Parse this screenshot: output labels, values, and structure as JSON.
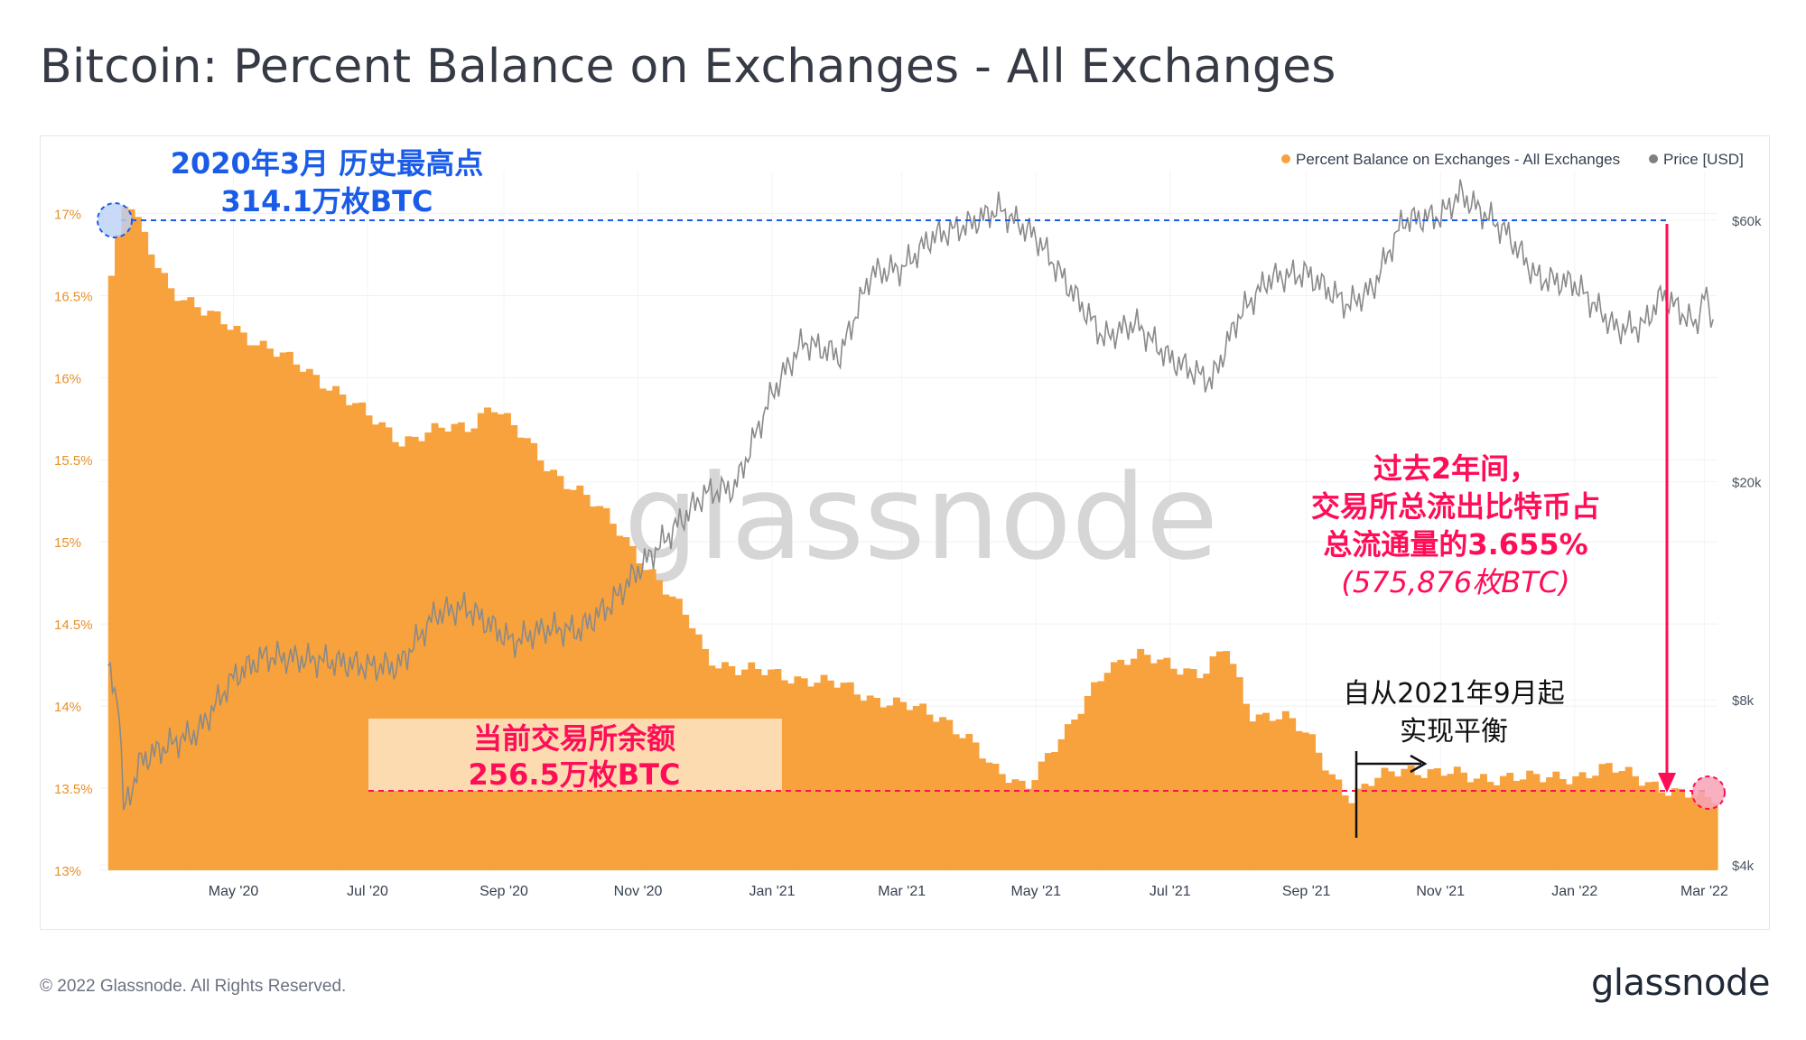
{
  "title": "Bitcoin: Percent Balance on Exchanges - All Exchanges",
  "footer": {
    "copyright": "© 2022 Glassnode. All Rights Reserved.",
    "logo": "glassnode"
  },
  "watermark": "glassnode",
  "colors": {
    "bar": "#f7a23c",
    "bar_edge": "#e8902a",
    "price": "#7f7f7f",
    "blue": "#1a5ce8",
    "magenta": "#ff0d57",
    "text": "#353a45"
  },
  "annotations": {
    "ath_line1": "2020年3月 历史最高点",
    "ath_line2": "314.1万枚BTC",
    "current_line1": "当前交易所余额",
    "current_line2": "256.5万枚BTC",
    "outflow_line1": "过去2年间，",
    "outflow_line2": "交易所总流出比特币占",
    "outflow_line3": "总流通量的3.655%",
    "outflow_line4": "(575,876枚BTC)",
    "balance_line1": "自从2021年9月起",
    "balance_line2": "实现平衡"
  },
  "chart_data": {
    "type": "bar",
    "title": "Bitcoin: Percent Balance on Exchanges - All Exchanges",
    "legend_placement": "top-right",
    "x_ticks": [
      "May '20",
      "Jul '20",
      "Sep '20",
      "Nov '20",
      "Jan '21",
      "Mar '21",
      "May '21",
      "Jul '21",
      "Sep '21",
      "Nov '21",
      "Jan '22",
      "Mar '22"
    ],
    "left_axis": {
      "ticks": [
        "13%",
        "13.5%",
        "14%",
        "14.5%",
        "15%",
        "15.5%",
        "16%",
        "16.5%",
        "17%"
      ],
      "ylim": [
        13.0,
        17.2
      ]
    },
    "right_axis": {
      "ticks": [
        "$4k",
        "$8k",
        "$20k",
        "$60k"
      ],
      "scale": "log"
    },
    "series": [
      {
        "name": "Percent Balance on Exchanges - All Exchanges",
        "type": "bar",
        "axis": "left",
        "points": [
          [
            "2020-03-05",
            16.62
          ],
          [
            "2020-03-12",
            17.1
          ],
          [
            "2020-03-20",
            16.85
          ],
          [
            "2020-04-01",
            16.55
          ],
          [
            "2020-04-15",
            16.4
          ],
          [
            "2020-05-01",
            16.3
          ],
          [
            "2020-05-15",
            16.18
          ],
          [
            "2020-06-01",
            16.05
          ],
          [
            "2020-06-15",
            15.93
          ],
          [
            "2020-07-01",
            15.75
          ],
          [
            "2020-07-15",
            15.62
          ],
          [
            "2020-08-01",
            15.68
          ],
          [
            "2020-08-15",
            15.7
          ],
          [
            "2020-08-25",
            15.85
          ],
          [
            "2020-09-05",
            15.68
          ],
          [
            "2020-09-20",
            15.45
          ],
          [
            "2020-10-05",
            15.3
          ],
          [
            "2020-10-20",
            15.1
          ],
          [
            "2020-11-01",
            14.9
          ],
          [
            "2020-11-15",
            14.65
          ],
          [
            "2020-11-25",
            14.48
          ],
          [
            "2020-12-01",
            14.3
          ],
          [
            "2020-12-15",
            14.22
          ],
          [
            "2021-01-01",
            14.2
          ],
          [
            "2021-01-20",
            14.15
          ],
          [
            "2021-02-01",
            14.12
          ],
          [
            "2021-02-15",
            14.05
          ],
          [
            "2021-03-01",
            14.0
          ],
          [
            "2021-03-20",
            13.92
          ],
          [
            "2021-04-01",
            13.78
          ],
          [
            "2021-04-10",
            13.6
          ],
          [
            "2021-04-25",
            13.52
          ],
          [
            "2021-05-05",
            13.7
          ],
          [
            "2021-05-15",
            13.85
          ],
          [
            "2021-05-25",
            14.1
          ],
          [
            "2021-06-01",
            14.25
          ],
          [
            "2021-06-15",
            14.3
          ],
          [
            "2021-07-01",
            14.25
          ],
          [
            "2021-07-15",
            14.2
          ],
          [
            "2021-07-25",
            14.35
          ],
          [
            "2021-08-05",
            13.95
          ],
          [
            "2021-08-20",
            13.95
          ],
          [
            "2021-09-01",
            13.8
          ],
          [
            "2021-09-10",
            13.6
          ],
          [
            "2021-09-20",
            13.45
          ],
          [
            "2021-10-01",
            13.55
          ],
          [
            "2021-10-15",
            13.62
          ],
          [
            "2021-11-01",
            13.6
          ],
          [
            "2021-11-15",
            13.55
          ],
          [
            "2021-12-01",
            13.58
          ],
          [
            "2021-12-15",
            13.55
          ],
          [
            "2022-01-01",
            13.58
          ],
          [
            "2022-01-15",
            13.62
          ],
          [
            "2022-02-01",
            13.55
          ],
          [
            "2022-02-15",
            13.47
          ],
          [
            "2022-03-01",
            13.43
          ],
          [
            "2022-03-05",
            13.45
          ]
        ]
      },
      {
        "name": "Price [USD]",
        "type": "line",
        "axis": "right",
        "points": [
          [
            "2020-03-05",
            9000
          ],
          [
            "2020-03-10",
            7900
          ],
          [
            "2020-03-12",
            5000
          ],
          [
            "2020-03-20",
            6200
          ],
          [
            "2020-04-01",
            6600
          ],
          [
            "2020-04-15",
            7000
          ],
          [
            "2020-05-01",
            8800
          ],
          [
            "2020-05-15",
            9600
          ],
          [
            "2020-06-01",
            9500
          ],
          [
            "2020-06-15",
            9400
          ],
          [
            "2020-07-01",
            9200
          ],
          [
            "2020-07-15",
            9200
          ],
          [
            "2020-08-01",
            11500
          ],
          [
            "2020-08-15",
            11800
          ],
          [
            "2020-09-05",
            10200
          ],
          [
            "2020-09-20",
            10800
          ],
          [
            "2020-10-05",
            10700
          ],
          [
            "2020-10-20",
            12000
          ],
          [
            "2020-11-01",
            13800
          ],
          [
            "2020-11-15",
            16000
          ],
          [
            "2020-12-01",
            19000
          ],
          [
            "2020-12-15",
            19500
          ],
          [
            "2021-01-01",
            29000
          ],
          [
            "2021-01-15",
            36000
          ],
          [
            "2021-02-01",
            34000
          ],
          [
            "2021-02-15",
            48000
          ],
          [
            "2021-03-01",
            49000
          ],
          [
            "2021-03-15",
            56000
          ],
          [
            "2021-04-01",
            59000
          ],
          [
            "2021-04-14",
            63000
          ],
          [
            "2021-05-01",
            56000
          ],
          [
            "2021-05-15",
            46000
          ],
          [
            "2021-06-01",
            36500
          ],
          [
            "2021-06-15",
            39000
          ],
          [
            "2021-07-01",
            33500
          ],
          [
            "2021-07-20",
            30500
          ],
          [
            "2021-08-01",
            40000
          ],
          [
            "2021-08-15",
            47000
          ],
          [
            "2021-09-01",
            48000
          ],
          [
            "2021-09-20",
            42000
          ],
          [
            "2021-10-01",
            45000
          ],
          [
            "2021-10-15",
            60000
          ],
          [
            "2021-11-01",
            61000
          ],
          [
            "2021-11-10",
            67000
          ],
          [
            "2021-12-01",
            57000
          ],
          [
            "2021-12-15",
            47000
          ],
          [
            "2022-01-01",
            46000
          ],
          [
            "2022-01-20",
            38000
          ],
          [
            "2022-02-01",
            38500
          ],
          [
            "2022-02-10",
            44000
          ],
          [
            "2022-02-25",
            38500
          ],
          [
            "2022-03-01",
            44000
          ],
          [
            "2022-03-05",
            39000
          ]
        ]
      }
    ]
  }
}
